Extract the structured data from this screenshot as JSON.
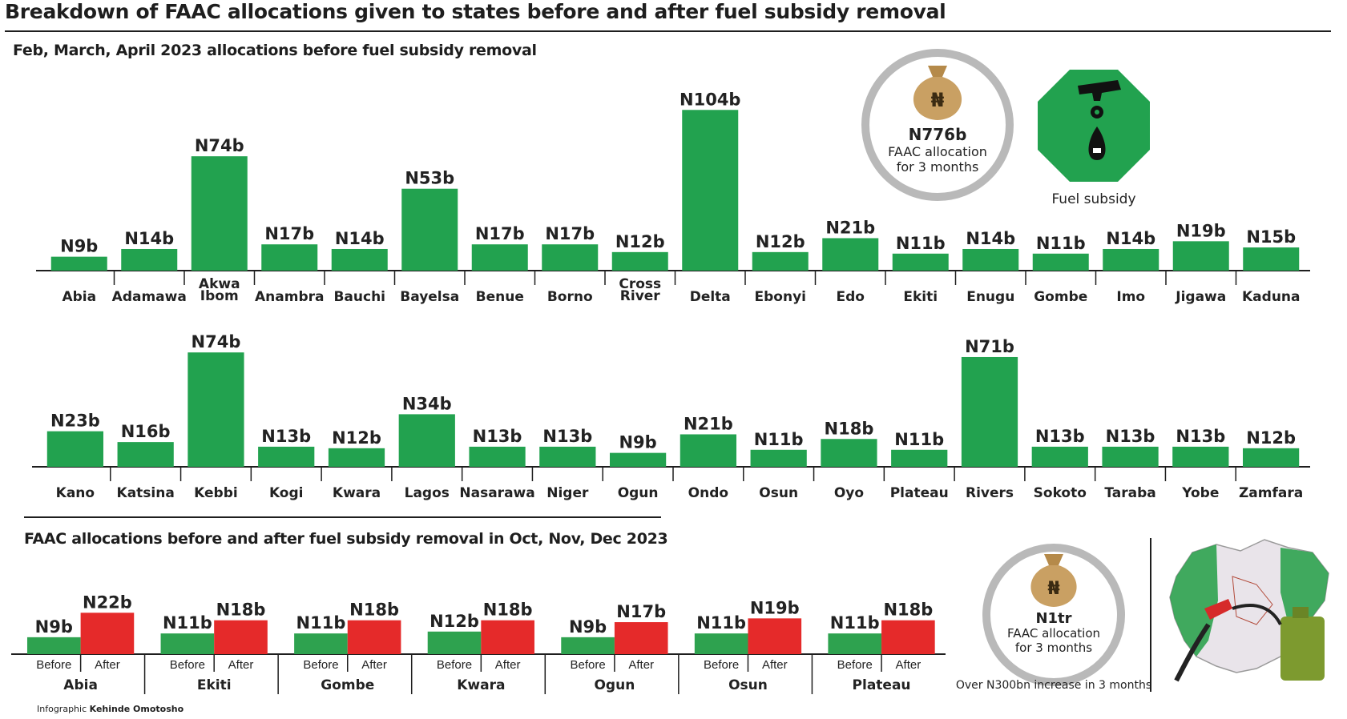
{
  "title": "Breakdown of FAAC allocations given to states before and after fuel subsidy removal",
  "section1_title": "Feb, March, April 2023 allocations before fuel subsidy removal",
  "section2_title": "FAAC allocations before and after fuel subsidy removal in Oct, Nov, Dec 2023",
  "badge1": {
    "value": "N776b",
    "line1": "FAAC allocation",
    "line2": "for 3 months"
  },
  "badge2": {
    "label": "Fuel subsidy"
  },
  "badge3": {
    "value": "N1tr",
    "line1": "FAAC allocation",
    "line2": "for 3 months",
    "note": "Over N300bn increase in 3 months"
  },
  "credit": {
    "prefix": "Infographic",
    "name": "Kehinde Omotosho"
  },
  "colors": {
    "green": "#22a24f",
    "red": "#e52a2a",
    "ring": "#b9b9b9",
    "oct": "#2ea24f"
  },
  "chart_data": [
    {
      "type": "bar",
      "title": "Feb, March, April 2023 allocations before fuel subsidy removal",
      "categories": [
        "Abia",
        "Adamawa",
        "Akwa Ibom",
        "Anambra",
        "Bauchi",
        "Bayelsa",
        "Benue",
        "Borno",
        "Cross River",
        "Delta",
        "Ebonyi",
        "Edo",
        "Ekiti",
        "Enugu",
        "Gombe",
        "Imo",
        "Jigawa",
        "Kaduna"
      ],
      "values": [
        9,
        14,
        74,
        17,
        14,
        53,
        17,
        17,
        12,
        104,
        12,
        21,
        11,
        14,
        11,
        14,
        19,
        15
      ],
      "labels": [
        "N9b",
        "N14b",
        "N74b",
        "N17b",
        "N14b",
        "N53b",
        "N17b",
        "N17b",
        "N12b",
        "N104b",
        "N12b",
        "N21b",
        "N11b",
        "N14b",
        "N11b",
        "N14b",
        "N19b",
        "N15b"
      ]
    },
    {
      "type": "bar",
      "title": "Feb, March, April 2023 allocations before fuel subsidy removal",
      "categories": [
        "Kano",
        "Katsina",
        "Kebbi",
        "Kogi",
        "Kwara",
        "Lagos",
        "Nasarawa",
        "Niger",
        "Ogun",
        "Ondo",
        "Osun",
        "Oyo",
        "Plateau",
        "Rivers",
        "Sokoto",
        "Taraba",
        "Yobe",
        "Zamfara"
      ],
      "values": [
        23,
        16,
        74,
        13,
        12,
        34,
        13,
        13,
        9,
        21,
        11,
        18,
        11,
        71,
        13,
        13,
        13,
        12
      ],
      "labels": [
        "N23b",
        "N16b",
        "N74b",
        "N13b",
        "N12b",
        "N34b",
        "N13b",
        "N13b",
        "N9b",
        "N21b",
        "N11b",
        "N18b",
        "N11b",
        "N71b",
        "N13b",
        "N13b",
        "N13b",
        "N12b"
      ]
    },
    {
      "type": "bar",
      "title": "FAAC allocations before and after fuel subsidy removal in Oct, Nov, Dec 2023",
      "categories": [
        "Abia",
        "Ekiti",
        "Gombe",
        "Kwara",
        "Ogun",
        "Osun",
        "Plateau"
      ],
      "sub_categories": [
        "Before",
        "After"
      ],
      "series": [
        {
          "name": "Before",
          "values": [
            9,
            11,
            11,
            12,
            9,
            11,
            11
          ],
          "labels": [
            "N9b",
            "N11b",
            "N11b",
            "N12b",
            "N9b",
            "N11b",
            "N11b"
          ]
        },
        {
          "name": "After",
          "values": [
            22,
            18,
            18,
            18,
            17,
            19,
            18
          ],
          "labels": [
            "N22b",
            "N18b",
            "N18b",
            "N18b",
            "N17b",
            "N19b",
            "N18b"
          ]
        }
      ]
    }
  ]
}
